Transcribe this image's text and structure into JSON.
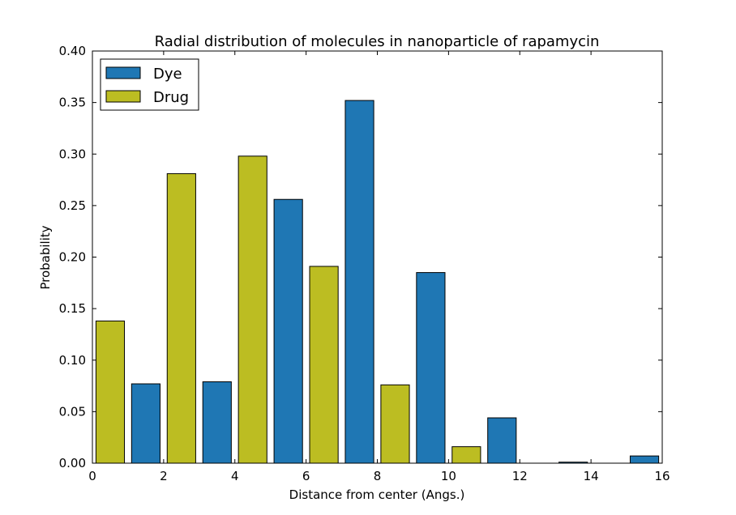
{
  "chart_data": {
    "type": "bar",
    "title": "Radial distribution of molecules in nanoparticle of rapamycin",
    "xlabel": "Distance from center (Angs.)",
    "ylabel": "Probability",
    "xlim": [
      0,
      16
    ],
    "ylim": [
      0,
      0.4
    ],
    "xticks": [
      0,
      2,
      4,
      6,
      8,
      10,
      12,
      14,
      16
    ],
    "yticks": [
      0.0,
      0.05,
      0.1,
      0.15,
      0.2,
      0.25,
      0.3,
      0.35,
      0.4
    ],
    "ytick_labels": [
      "0.00",
      "0.05",
      "0.10",
      "0.15",
      "0.20",
      "0.25",
      "0.30",
      "0.35",
      "0.40"
    ],
    "bar_width": 0.8,
    "legend_position": "top-left",
    "grid": false,
    "series": [
      {
        "name": "Dye",
        "color": "#1f77b4",
        "x": [
          1,
          3,
          5,
          7,
          9,
          11,
          13,
          15
        ],
        "values": [
          0.077,
          0.079,
          0.256,
          0.352,
          0.185,
          0.044,
          0.001,
          0.007
        ]
      },
      {
        "name": "Drug",
        "color": "#bcbd22",
        "x": [
          0,
          2,
          4,
          6,
          8,
          10,
          12,
          14
        ],
        "values": [
          0.138,
          0.281,
          0.298,
          0.191,
          0.076,
          0.016,
          0.0,
          0.0
        ]
      }
    ]
  }
}
